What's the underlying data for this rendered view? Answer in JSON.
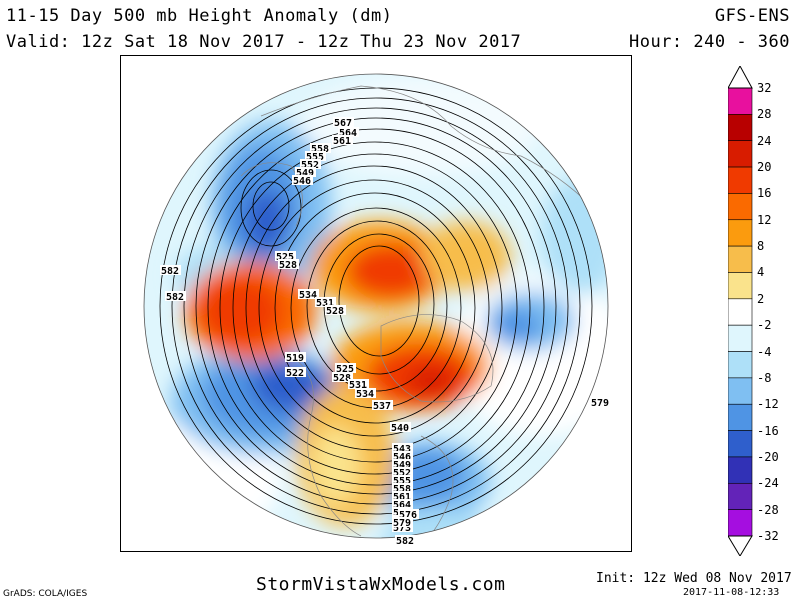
{
  "header": {
    "title": "11-15 Day 500 mb Height Anomaly (dm)",
    "valid": "Valid: 12z Sat 18 Nov 2017 - 12z Thu 23 Nov 2017",
    "model": "GFS-ENS",
    "hour": "Hour: 240 - 360"
  },
  "footer": {
    "grads": "GrADS: COLA/IGES",
    "website": "StormVistaWxModels.com",
    "init": "Init: 12z Wed 08 Nov 2017",
    "stamp": "2017-11-08-12:33"
  },
  "colorbar": {
    "levels": [
      "32",
      "28",
      "24",
      "20",
      "16",
      "12",
      "8",
      "4",
      "2",
      "-2",
      "-4",
      "-8",
      "-12",
      "-16",
      "-20",
      "-24",
      "-28",
      "-32"
    ],
    "colors": [
      "#e8109e",
      "#b80000",
      "#d81c00",
      "#f03a00",
      "#fa6a00",
      "#fb9b0e",
      "#f7bd4b",
      "#fae38c",
      "#ffffff",
      "#dff6fd",
      "#aee0f8",
      "#7fbff2",
      "#4f94e4",
      "#2f5fcc",
      "#3131b6",
      "#6323b8",
      "#a50ee0"
    ]
  },
  "map": {
    "height_labels": [
      "567",
      "564",
      "561",
      "558",
      "555",
      "552",
      "549",
      "546",
      "525",
      "528",
      "582",
      "582",
      "534",
      "531",
      "528",
      "519",
      "522",
      "525",
      "528",
      "531",
      "534",
      "537",
      "540",
      "543",
      "546",
      "549",
      "552",
      "555",
      "558",
      "561",
      "564",
      "567",
      "570",
      "573",
      "576",
      "579",
      "582",
      "579"
    ]
  }
}
